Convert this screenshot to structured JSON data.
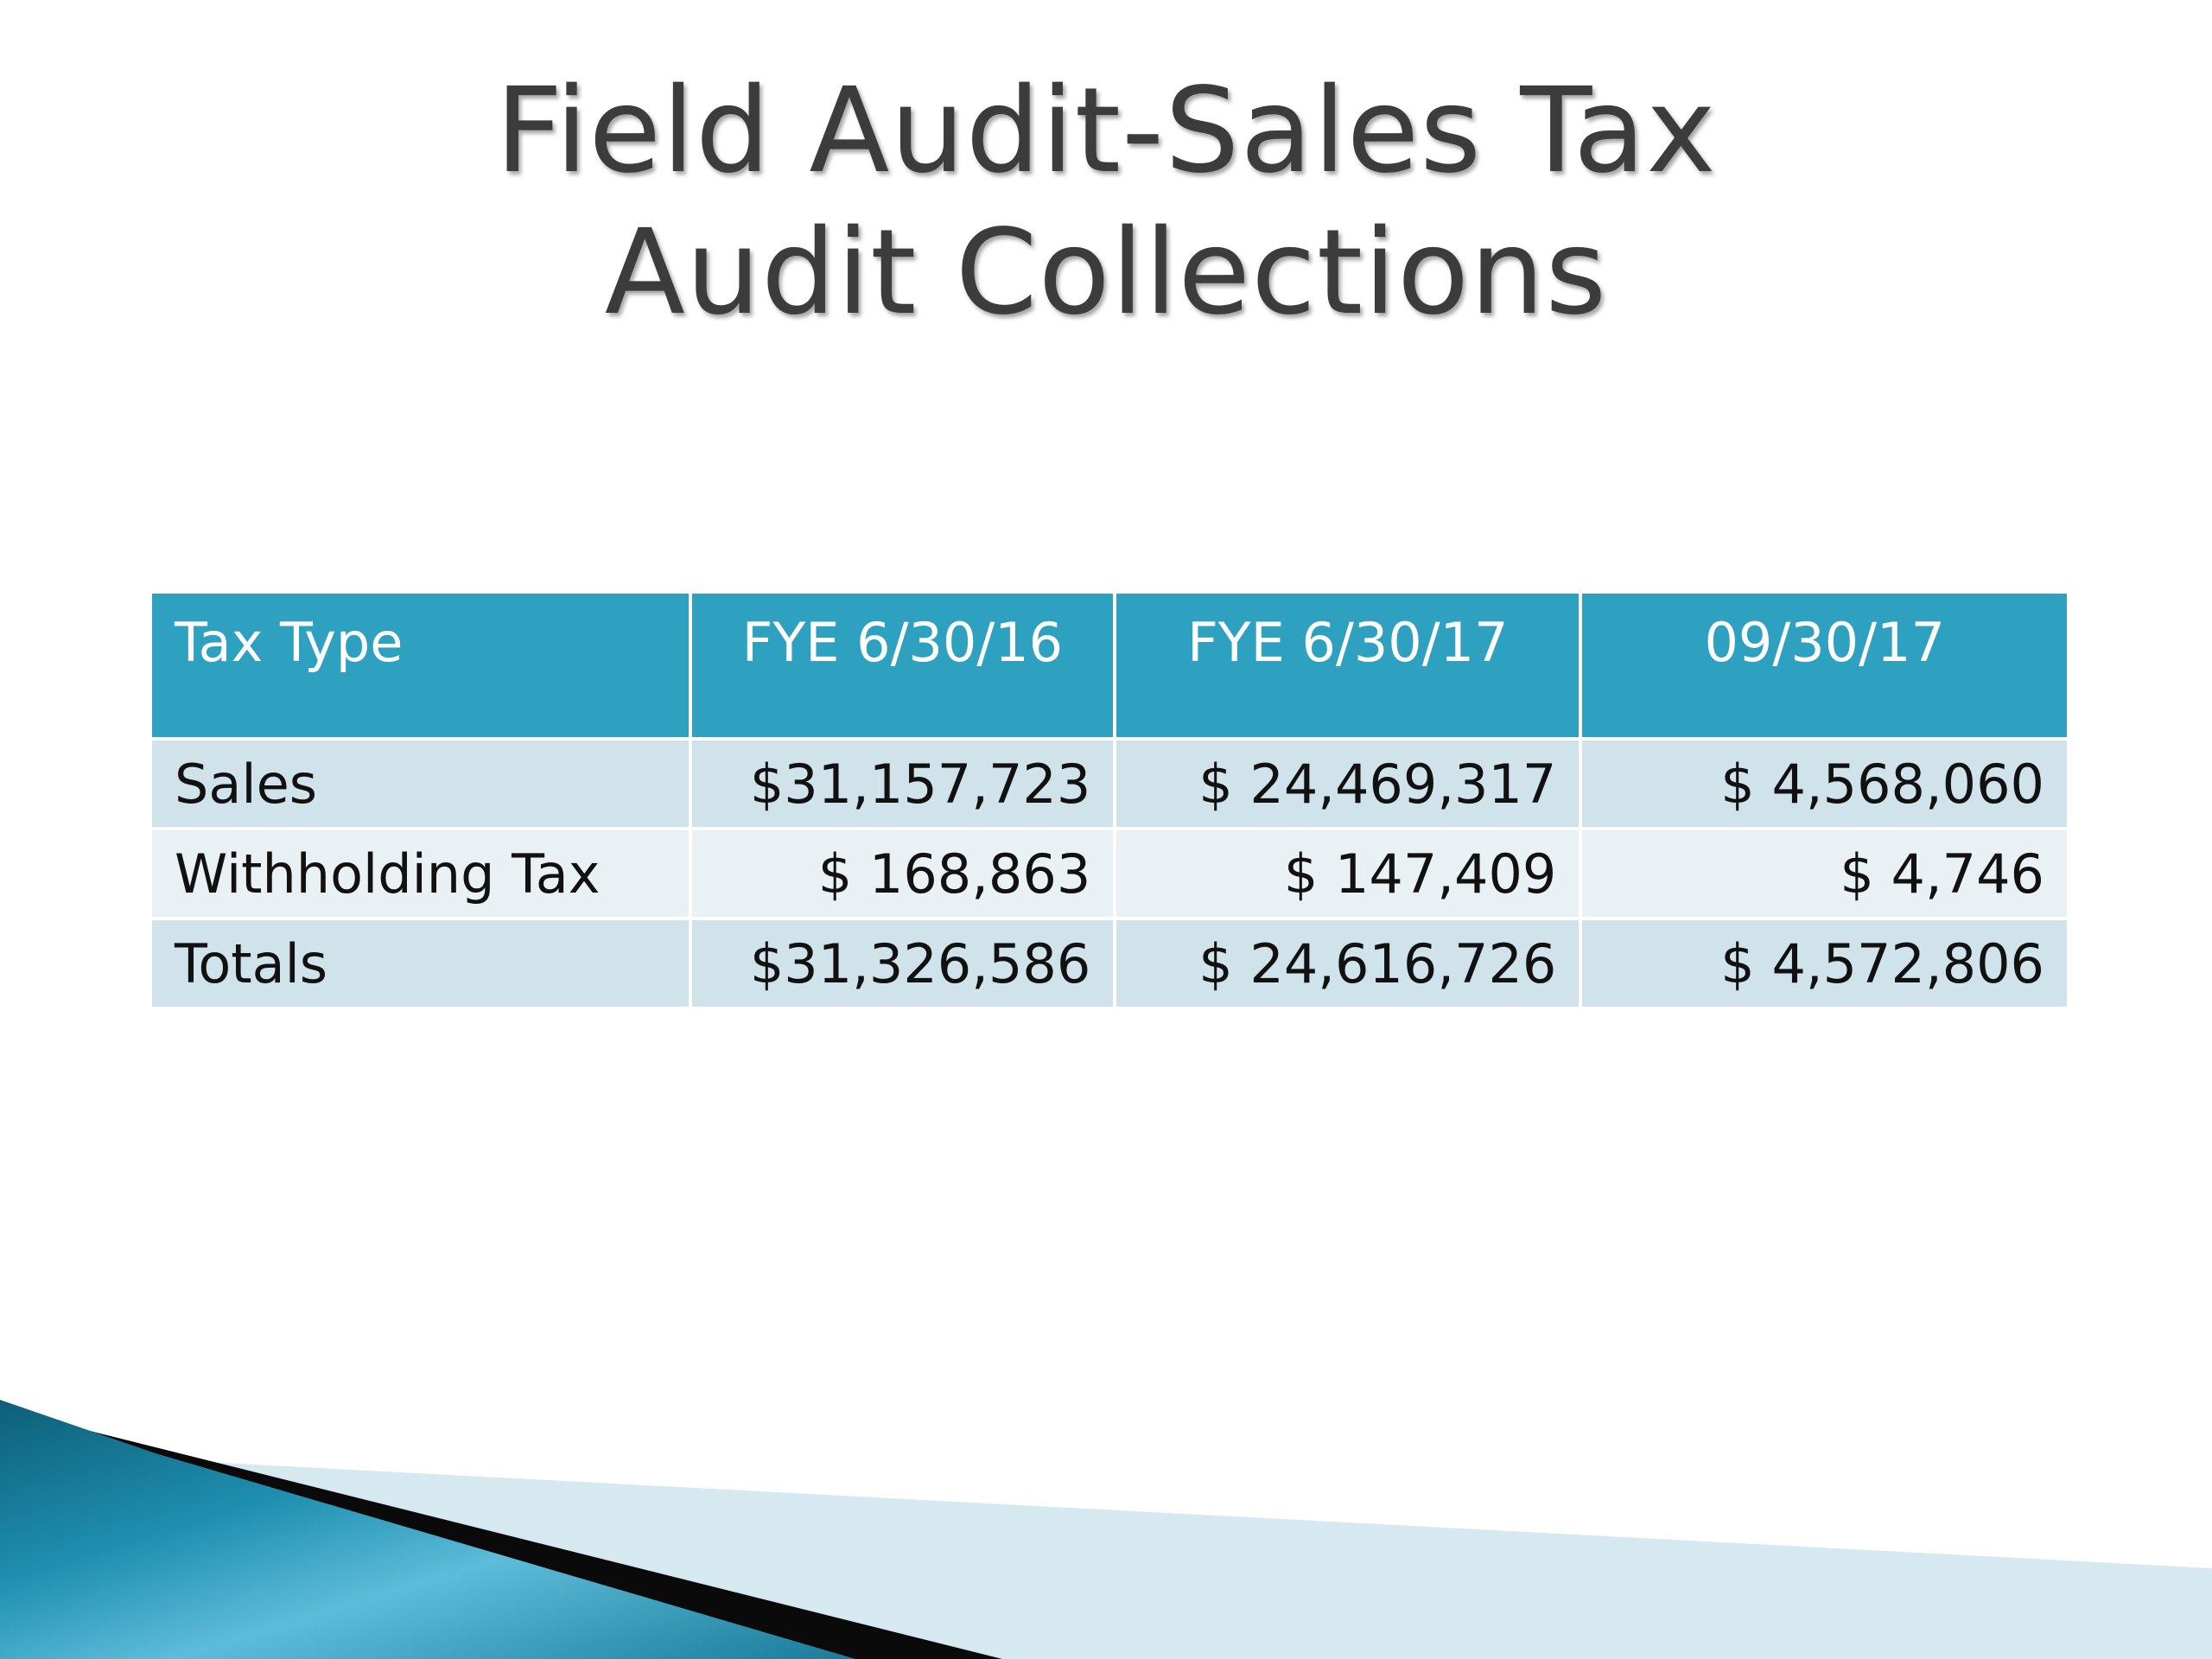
{
  "slide": {
    "title_line1": "Field Audit-Sales Tax",
    "title_line2": "Audit Collections"
  },
  "table": {
    "headers": [
      "Tax Type",
      "FYE 6/30/16",
      "FYE 6/30/17",
      "09/30/17"
    ],
    "rows": [
      [
        "Sales",
        "$31,157,723",
        "$ 24,469,317",
        "$ 4,568,060"
      ],
      [
        "Withholding Tax",
        "$ 168,863",
        "$ 147,409",
        "$ 4,746"
      ],
      [
        "Totals",
        "$31,326,586",
        "$ 24,616,726",
        "$ 4,572,806"
      ]
    ]
  },
  "colors": {
    "header_bg": "#2ea1c0",
    "row_odd": "#d0e2ea",
    "row_even": "#e9f1f5",
    "accent_teal": "#1a7c99"
  }
}
